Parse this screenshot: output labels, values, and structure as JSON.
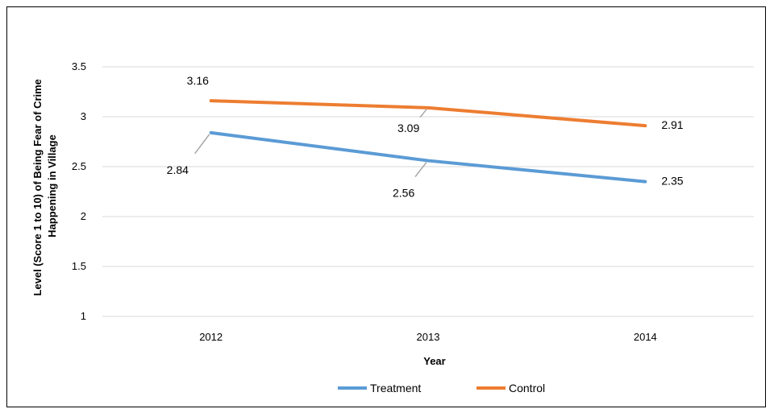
{
  "chart_data": {
    "type": "line",
    "categories": [
      "2012",
      "2013",
      "2014"
    ],
    "series": [
      {
        "name": "Treatment",
        "values": [
          2.84,
          2.56,
          2.35
        ],
        "color": "#5b9bd5"
      },
      {
        "name": "Control",
        "values": [
          3.16,
          3.09,
          2.91
        ],
        "color": "#ed7d31"
      }
    ],
    "xlabel": "Year",
    "ylabel_lines": [
      "Level (Score 1 to 10)  of Being Fear of Crime",
      "Happening in Village"
    ],
    "ylim": [
      1,
      3.5
    ],
    "yticks": [
      "1",
      "1.5",
      "2",
      "2.5",
      "3",
      "3.5"
    ],
    "data_labels": [
      {
        "series": "Control",
        "index": 0,
        "text": "3.16"
      },
      {
        "series": "Control",
        "index": 1,
        "text": "3.09"
      },
      {
        "series": "Control",
        "index": 2,
        "text": "2.91"
      },
      {
        "series": "Treatment",
        "index": 0,
        "text": "2.84"
      },
      {
        "series": "Treatment",
        "index": 1,
        "text": "2.56"
      },
      {
        "series": "Treatment",
        "index": 2,
        "text": "2.35"
      }
    ],
    "grid": "horizontal",
    "legend": "bottom-center",
    "gridColor": "#d9d9d9"
  }
}
